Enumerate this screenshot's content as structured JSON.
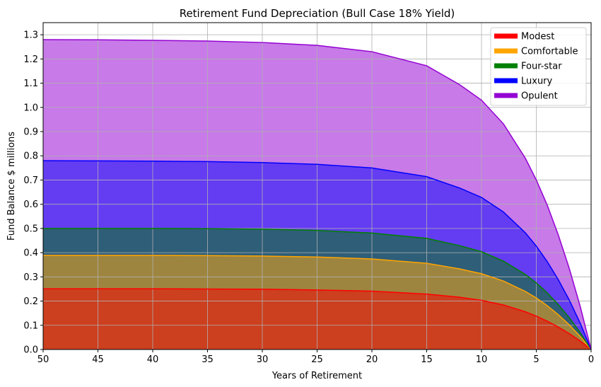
{
  "chart_data": {
    "type": "area",
    "title": "Retirement Fund Depreciation (Bull Case 18% Yield)",
    "xlabel": "Years of Retirement",
    "ylabel": "Fund Balance $ millions",
    "xlim": [
      50,
      0
    ],
    "ylim": [
      0,
      1.35
    ],
    "x_reversed": true,
    "grid": true,
    "legend_position": "top-right",
    "x_ticks": [
      50,
      45,
      40,
      35,
      30,
      25,
      20,
      15,
      10,
      5,
      0
    ],
    "x_tick_labels": [
      "50",
      "45",
      "40",
      "35",
      "30",
      "25",
      "20",
      "15",
      "10",
      "5",
      "0"
    ],
    "y_ticks": [
      0,
      0.1,
      0.2,
      0.3,
      0.4,
      0.5,
      0.6,
      0.7,
      0.8,
      0.9,
      1.0,
      1.1,
      1.2,
      1.3
    ],
    "y_tick_labels": [
      "0.0",
      "0.1",
      "0.2",
      "0.3",
      "0.4",
      "0.5",
      "0.6",
      "0.7",
      "0.8",
      "0.9",
      "1.0",
      "1.1",
      "1.2",
      "1.3"
    ],
    "x": [
      50,
      45,
      40,
      35,
      30,
      25,
      20,
      15,
      12,
      10,
      8,
      6,
      5,
      4,
      3,
      2,
      1,
      0
    ],
    "series": [
      {
        "name": "Modest",
        "color": "#ff0000",
        "fill": "#cc3f1f",
        "values": [
          0.251,
          0.251,
          0.251,
          0.25,
          0.249,
          0.246,
          0.241,
          0.229,
          0.216,
          0.203,
          0.184,
          0.156,
          0.138,
          0.117,
          0.093,
          0.066,
          0.035,
          0.0
        ]
      },
      {
        "name": "Comfortable",
        "color": "#ffa500",
        "fill": "#9e853f",
        "values": [
          0.389,
          0.389,
          0.389,
          0.388,
          0.386,
          0.382,
          0.374,
          0.356,
          0.333,
          0.313,
          0.283,
          0.24,
          0.213,
          0.181,
          0.144,
          0.102,
          0.054,
          0.0
        ]
      },
      {
        "name": "Four-star",
        "color": "#008000",
        "fill": "#2e5e78",
        "values": [
          0.5,
          0.5,
          0.5,
          0.499,
          0.497,
          0.492,
          0.481,
          0.459,
          0.429,
          0.404,
          0.365,
          0.31,
          0.275,
          0.234,
          0.186,
          0.132,
          0.07,
          0.0
        ]
      },
      {
        "name": "Luxury",
        "color": "#0000ff",
        "fill": "#643cf2",
        "values": [
          0.78,
          0.779,
          0.778,
          0.776,
          0.772,
          0.765,
          0.75,
          0.714,
          0.667,
          0.628,
          0.568,
          0.482,
          0.427,
          0.363,
          0.289,
          0.205,
          0.109,
          0.0
        ]
      },
      {
        "name": "Opulent",
        "color": "#9400d3",
        "fill": "#c77ae8",
        "values": [
          1.28,
          1.279,
          1.277,
          1.274,
          1.268,
          1.256,
          1.23,
          1.172,
          1.094,
          1.03,
          0.932,
          0.79,
          0.7,
          0.596,
          0.474,
          0.336,
          0.179,
          0.0
        ]
      }
    ]
  }
}
